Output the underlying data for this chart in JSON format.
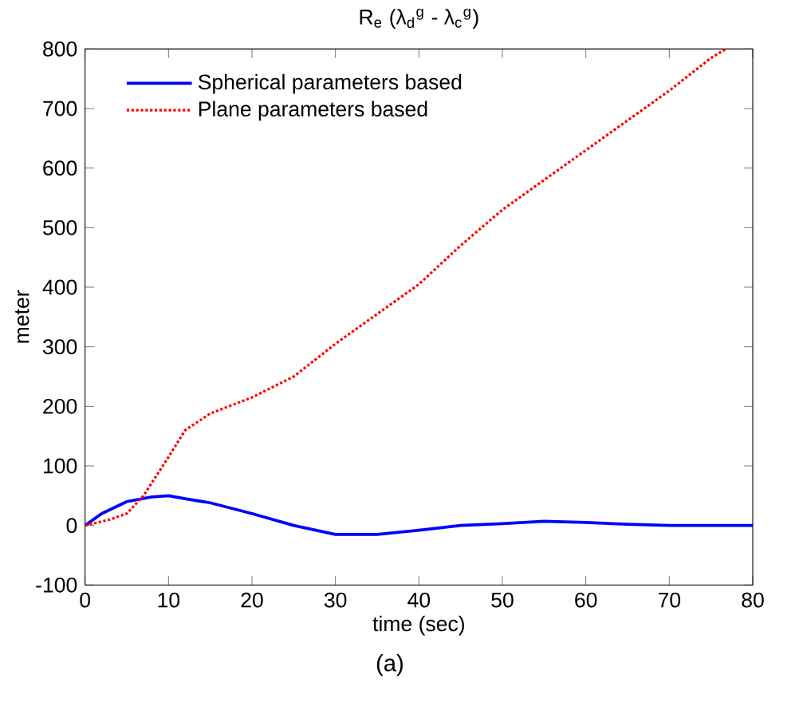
{
  "chart_data": {
    "type": "line",
    "title": "R$_{e}$ (λ$_{d}$$^{g}$ - λ$_{c}$$^{g}$)",
    "xlabel": "time (sec)",
    "ylabel": "meter",
    "annotations": [
      "(a)"
    ],
    "xlim": [
      0,
      80
    ],
    "ylim": [
      -100,
      800
    ],
    "xticks": [
      0,
      10,
      20,
      30,
      40,
      50,
      60,
      70,
      80
    ],
    "yticks": [
      -100,
      0,
      100,
      200,
      300,
      400,
      500,
      600,
      700,
      800
    ],
    "grid": false,
    "legend": "top left",
    "series": [
      {
        "name": "Spherical parameters based",
        "color": "#0000ff",
        "line_style": "solid",
        "x": [
          0,
          2,
          5,
          8,
          10,
          12,
          15,
          20,
          25,
          30,
          35,
          40,
          45,
          50,
          55,
          60,
          65,
          70,
          80
        ],
        "values": [
          0,
          20,
          40,
          48,
          50,
          45,
          38,
          20,
          0,
          -15,
          -15,
          -8,
          0,
          3,
          7,
          5,
          2,
          0,
          0
        ]
      },
      {
        "name": "Plane parameters based",
        "color": "#ff0000",
        "line_style": "dotted",
        "x": [
          0,
          3,
          5,
          7,
          10,
          12,
          15,
          20,
          25,
          30,
          35,
          40,
          45,
          50,
          55,
          60,
          65,
          70,
          75,
          76.8
        ],
        "values": [
          0,
          10,
          20,
          50,
          115,
          160,
          188,
          215,
          250,
          305,
          355,
          405,
          470,
          530,
          580,
          630,
          680,
          730,
          785,
          800
        ]
      }
    ]
  }
}
